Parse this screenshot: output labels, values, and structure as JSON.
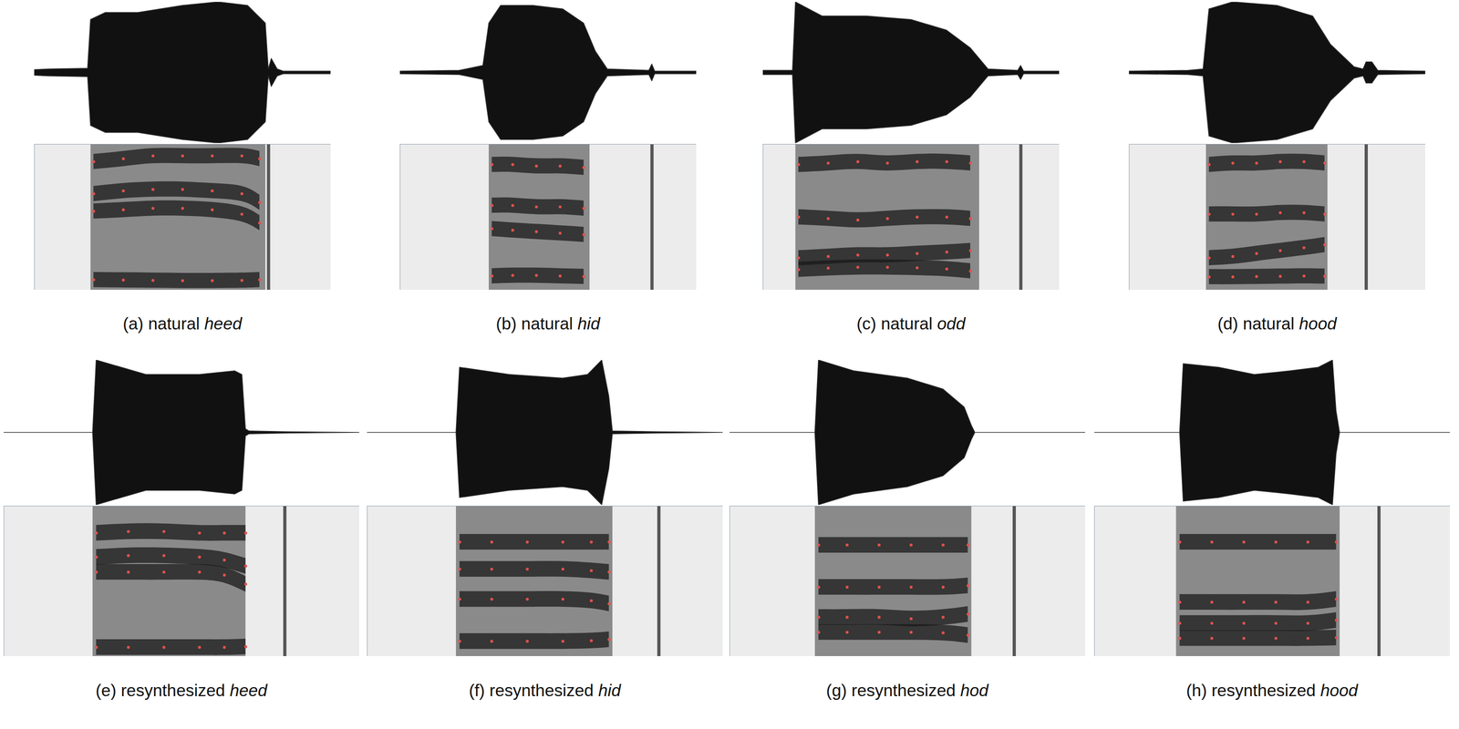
{
  "chart_data": [
    {
      "type": "spectrogram",
      "title": "(a) natural heed",
      "tick_labels": false,
      "xlim": [
        0,
        100
      ],
      "ylim": [
        0,
        5000
      ],
      "waveform": {
        "ylim": [
          -1,
          1
        ],
        "x": [
          0,
          5,
          18,
          19,
          24,
          35,
          50,
          62,
          72,
          78,
          79,
          80,
          82,
          84,
          100
        ],
        "values": [
          0.04,
          0.05,
          0.06,
          0.75,
          0.85,
          0.85,
          0.95,
          1,
          0.95,
          0.7,
          0.05,
          0.2,
          0.05,
          0.02,
          0.02
        ]
      },
      "voicing": [
        19,
        78
      ],
      "burst": 79,
      "x": [
        20,
        30,
        40,
        50,
        60,
        70,
        76
      ],
      "series": [
        {
          "color": "#e0524c",
          "values": [
            350,
            340,
            330,
            320,
            320,
            330,
            350
          ]
        },
        {
          "color": "#e0524c",
          "values": [
            2700,
            2750,
            2800,
            2800,
            2750,
            2600,
            2300
          ]
        },
        {
          "color": "#e0524c",
          "values": [
            3300,
            3400,
            3450,
            3450,
            3400,
            3300,
            3000
          ]
        },
        {
          "color": "#e0524c",
          "values": [
            4400,
            4500,
            4600,
            4600,
            4600,
            4600,
            4500
          ]
        }
      ]
    },
    {
      "type": "spectrogram",
      "title": "(b) natural hid",
      "tick_labels": false,
      "xlim": [
        0,
        100
      ],
      "ylim": [
        0,
        5000
      ],
      "waveform": {
        "ylim": [
          -1,
          1
        ],
        "x": [
          0,
          20,
          28,
          30,
          34,
          45,
          55,
          62,
          66,
          70,
          84,
          85,
          86,
          100
        ],
        "values": [
          0.02,
          0.03,
          0.1,
          0.7,
          0.95,
          0.95,
          0.9,
          0.7,
          0.3,
          0.05,
          0.03,
          0.12,
          0.02,
          0.02
        ]
      },
      "voicing": [
        30,
        64
      ],
      "burst": 85,
      "x": [
        31,
        38,
        46,
        54,
        62
      ],
      "series": [
        {
          "color": "#e0524c",
          "values": [
            480,
            500,
            500,
            480,
            460
          ]
        },
        {
          "color": "#e0524c",
          "values": [
            2100,
            2050,
            2000,
            1950,
            1900
          ]
        },
        {
          "color": "#e0524c",
          "values": [
            2900,
            2900,
            2850,
            2850,
            2800
          ]
        },
        {
          "color": "#e0524c",
          "values": [
            4300,
            4300,
            4250,
            4250,
            4200
          ]
        }
      ]
    },
    {
      "type": "spectrogram",
      "title": "(c) natural odd",
      "tick_labels": false,
      "xlim": [
        0,
        100
      ],
      "ylim": [
        0,
        5000
      ],
      "waveform": {
        "ylim": [
          -1,
          1
        ],
        "x": [
          0,
          10,
          11,
          20,
          35,
          50,
          62,
          70,
          76,
          86,
          87,
          88,
          100
        ],
        "values": [
          0.03,
          0.03,
          1,
          0.8,
          0.8,
          0.75,
          0.6,
          0.35,
          0.05,
          0.03,
          0.1,
          0.02,
          0.02
        ]
      },
      "voicing": [
        11,
        73
      ],
      "burst": 87,
      "x": [
        12,
        22,
        32,
        42,
        52,
        62,
        70
      ],
      "series": [
        {
          "color": "#e0524c",
          "values": [
            700,
            750,
            780,
            780,
            760,
            720,
            650
          ]
        },
        {
          "color": "#e0524c",
          "values": [
            1100,
            1150,
            1200,
            1200,
            1250,
            1300,
            1350
          ]
        },
        {
          "color": "#e0524c",
          "values": [
            2500,
            2450,
            2400,
            2450,
            2500,
            2500,
            2450
          ]
        },
        {
          "color": "#e0524c",
          "values": [
            4300,
            4350,
            4400,
            4350,
            4400,
            4400,
            4350
          ]
        }
      ]
    },
    {
      "type": "spectrogram",
      "title": "(d) natural hood",
      "tick_labels": false,
      "xlim": [
        0,
        100
      ],
      "ylim": [
        0,
        5000
      ],
      "waveform": {
        "ylim": [
          -1,
          1
        ],
        "x": [
          0,
          20,
          25,
          27,
          35,
          50,
          62,
          68,
          76,
          79,
          80,
          82,
          84,
          100
        ],
        "values": [
          0.02,
          0.03,
          0.05,
          0.9,
          1,
          0.95,
          0.8,
          0.4,
          0.08,
          0.05,
          0.15,
          0.15,
          0.03,
          0.02
        ]
      },
      "voicing": [
        26,
        67
      ],
      "burst": 80,
      "x": [
        27,
        35,
        43,
        51,
        59,
        66
      ],
      "series": [
        {
          "color": "#e0524c",
          "values": [
            450,
            450,
            460,
            470,
            480,
            470
          ]
        },
        {
          "color": "#e0524c",
          "values": [
            1100,
            1150,
            1250,
            1350,
            1450,
            1550
          ]
        },
        {
          "color": "#e0524c",
          "values": [
            2600,
            2600,
            2600,
            2650,
            2650,
            2600
          ]
        },
        {
          "color": "#e0524c",
          "values": [
            4300,
            4350,
            4350,
            4400,
            4400,
            4350
          ]
        }
      ]
    },
    {
      "type": "spectrogram",
      "title": "(e) resynthesized heed",
      "tick_labels": false,
      "xlim": [
        0,
        100
      ],
      "ylim": [
        0,
        5000
      ],
      "waveform": {
        "ylim": [
          -1,
          1
        ],
        "x": [
          0,
          24,
          25,
          26,
          40,
          55,
          65,
          67,
          68,
          69,
          80,
          100
        ],
        "values": [
          0,
          0,
          0,
          1,
          0.8,
          0.8,
          0.85,
          0.8,
          0.05,
          0.02,
          0.01,
          0
        ]
      },
      "voicing": [
        25,
        68
      ],
      "burst": 79,
      "x": [
        26,
        35,
        45,
        55,
        62,
        68
      ],
      "series": [
        {
          "color": "#e0524c",
          "values": [
            300,
            300,
            300,
            300,
            300,
            320
          ]
        },
        {
          "color": "#e0524c",
          "values": [
            2800,
            2800,
            2800,
            2800,
            2700,
            2400
          ]
        },
        {
          "color": "#e0524c",
          "values": [
            3300,
            3350,
            3350,
            3300,
            3200,
            3000
          ]
        },
        {
          "color": "#e0524c",
          "values": [
            4100,
            4150,
            4150,
            4100,
            4100,
            4100
          ]
        }
      ]
    },
    {
      "type": "spectrogram",
      "title": "(f) resynthesized hid",
      "tick_labels": false,
      "xlim": [
        0,
        100
      ],
      "ylim": [
        0,
        5000
      ],
      "waveform": {
        "ylim": [
          -1,
          1
        ],
        "x": [
          0,
          24,
          25,
          26,
          40,
          55,
          62,
          66,
          68,
          69,
          82,
          100
        ],
        "values": [
          0,
          0,
          0,
          0.9,
          0.8,
          0.75,
          0.8,
          1,
          0.5,
          0.02,
          0.01,
          0
        ]
      },
      "voicing": [
        25,
        69
      ],
      "burst": 82,
      "x": [
        26,
        35,
        45,
        55,
        63,
        68
      ],
      "series": [
        {
          "color": "#e0524c",
          "values": [
            500,
            500,
            500,
            500,
            520,
            560
          ]
        },
        {
          "color": "#e0524c",
          "values": [
            1900,
            1900,
            1900,
            1900,
            1850,
            1750
          ]
        },
        {
          "color": "#e0524c",
          "values": [
            2900,
            2900,
            2900,
            2900,
            2850,
            2800
          ]
        },
        {
          "color": "#e0524c",
          "values": [
            3800,
            3800,
            3800,
            3800,
            3800,
            3800
          ]
        }
      ]
    },
    {
      "type": "spectrogram",
      "title": "(g) resynthesized hod",
      "tick_labels": false,
      "xlim": [
        0,
        100
      ],
      "ylim": [
        0,
        5000
      ],
      "waveform": {
        "ylim": [
          -1,
          1
        ],
        "x": [
          0,
          23,
          24,
          25,
          35,
          50,
          60,
          66,
          68,
          69,
          100
        ],
        "values": [
          0,
          0,
          0,
          1,
          0.85,
          0.75,
          0.6,
          0.35,
          0.1,
          0,
          0
        ]
      },
      "voicing": [
        24,
        68
      ],
      "burst": 80,
      "x": [
        25,
        33,
        42,
        51,
        60,
        67
      ],
      "series": [
        {
          "color": "#e0524c",
          "values": [
            800,
            800,
            800,
            800,
            780,
            700
          ]
        },
        {
          "color": "#e0524c",
          "values": [
            1300,
            1300,
            1300,
            1250,
            1300,
            1400
          ]
        },
        {
          "color": "#e0524c",
          "values": [
            2300,
            2300,
            2300,
            2300,
            2300,
            2350
          ]
        },
        {
          "color": "#e0524c",
          "values": [
            3700,
            3700,
            3700,
            3700,
            3700,
            3700
          ]
        }
      ]
    },
    {
      "type": "spectrogram",
      "title": "(h) resynthesized hood",
      "tick_labels": false,
      "xlim": [
        0,
        100
      ],
      "ylim": [
        0,
        5000
      ],
      "waveform": {
        "ylim": [
          -1,
          1
        ],
        "x": [
          0,
          23,
          24,
          25,
          35,
          45,
          55,
          63,
          67,
          68,
          69,
          100
        ],
        "values": [
          0,
          0,
          0,
          0.95,
          0.9,
          0.8,
          0.85,
          0.9,
          1,
          0.3,
          0,
          0
        ]
      },
      "voicing": [
        23,
        69
      ],
      "burst": 80,
      "x": [
        24,
        33,
        42,
        51,
        60,
        68
      ],
      "series": [
        {
          "color": "#e0524c",
          "values": [
            600,
            600,
            600,
            600,
            600,
            620
          ]
        },
        {
          "color": "#e0524c",
          "values": [
            1100,
            1100,
            1100,
            1100,
            1100,
            1200
          ]
        },
        {
          "color": "#e0524c",
          "values": [
            1800,
            1800,
            1800,
            1800,
            1800,
            1900
          ]
        },
        {
          "color": "#e0524c",
          "values": [
            3800,
            3800,
            3800,
            3800,
            3800,
            3800
          ]
        }
      ]
    }
  ]
}
